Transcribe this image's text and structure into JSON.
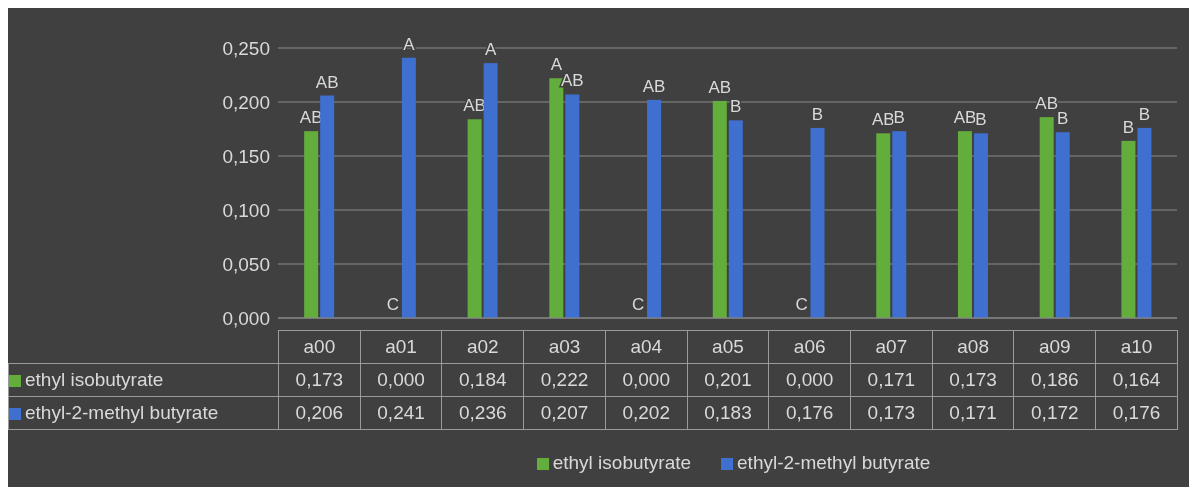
{
  "chart_data": {
    "type": "bar",
    "categories": [
      "a00",
      "a01",
      "a02",
      "a03",
      "a04",
      "a05",
      "a06",
      "a07",
      "a08",
      "a09",
      "a10"
    ],
    "series": [
      {
        "name": "ethyl isobutyrate",
        "color": "#62ad3c",
        "values": [
          0.173,
          0,
          0.184,
          0.222,
          0,
          0.201,
          0,
          0.171,
          0.173,
          0.186,
          0.164
        ],
        "value_labels": [
          "0,173",
          "0,000",
          "0,184",
          "0,222",
          "0,000",
          "0,201",
          "0,000",
          "0,171",
          "0,173",
          "0,186",
          "0,164"
        ]
      },
      {
        "name": "ethyl-2-methyl butyrate",
        "color": "#3f6fcf",
        "values": [
          0.206,
          0.241,
          0.236,
          0.207,
          0.202,
          0.183,
          0.176,
          0.173,
          0.171,
          0.172,
          0.176
        ],
        "value_labels": [
          "0,206",
          "0,241",
          "0,236",
          "0,207",
          "0,202",
          "0,183",
          "0,176",
          "0,173",
          "0,171",
          "0,172",
          "0,176"
        ]
      }
    ],
    "annotations": [
      {
        "text": "AB",
        "x": "a00",
        "y": 0.173
      },
      {
        "text": "AB",
        "x": "a00",
        "y": 0.206
      },
      {
        "text": "C",
        "x": "a01",
        "y": 0
      },
      {
        "text": "A",
        "x": "a01",
        "y": 0.241
      },
      {
        "text": "AB",
        "x": "a02",
        "y": 0.184
      },
      {
        "text": "A",
        "x": "a02",
        "y": 0.236
      },
      {
        "text": "A",
        "x": "a03",
        "y": 0.222
      },
      {
        "text": "AB",
        "x": "a03",
        "y": 0.207
      },
      {
        "text": "C",
        "x": "a04",
        "y": 0
      },
      {
        "text": "AB",
        "x": "a04",
        "y": 0.202
      },
      {
        "text": "AB",
        "x": "a05",
        "y": 0.201
      },
      {
        "text": "B",
        "x": "a05",
        "y": 0.183
      },
      {
        "text": "C",
        "x": "a06",
        "y": 0
      },
      {
        "text": "B",
        "x": "a06",
        "y": 0.176
      },
      {
        "text": "AB",
        "x": "a07",
        "y": 0.171
      },
      {
        "text": "B",
        "x": "a07",
        "y": 0.173
      },
      {
        "text": "AB",
        "x": "a08",
        "y": 0.173
      },
      {
        "text": "B",
        "x": "a08",
        "y": 0.171
      },
      {
        "text": "AB",
        "x": "a09",
        "y": 0.186
      },
      {
        "text": "B",
        "x": "a09",
        "y": 0.172
      },
      {
        "text": "B",
        "x": "a10",
        "y": 0.164
      },
      {
        "text": "B",
        "x": "a10",
        "y": 0.176
      }
    ],
    "ylim": [
      0,
      0.25
    ],
    "yticks": [
      {
        "value": 0,
        "label": "0,000"
      },
      {
        "value": 0.05,
        "label": "0,050"
      },
      {
        "value": 0.1,
        "label": "0,100"
      },
      {
        "value": 0.15,
        "label": "0,150"
      },
      {
        "value": 0.2,
        "label": "0,200"
      },
      {
        "value": 0.25,
        "label": "0,250"
      }
    ],
    "grid": "y",
    "legend": "bottom"
  }
}
